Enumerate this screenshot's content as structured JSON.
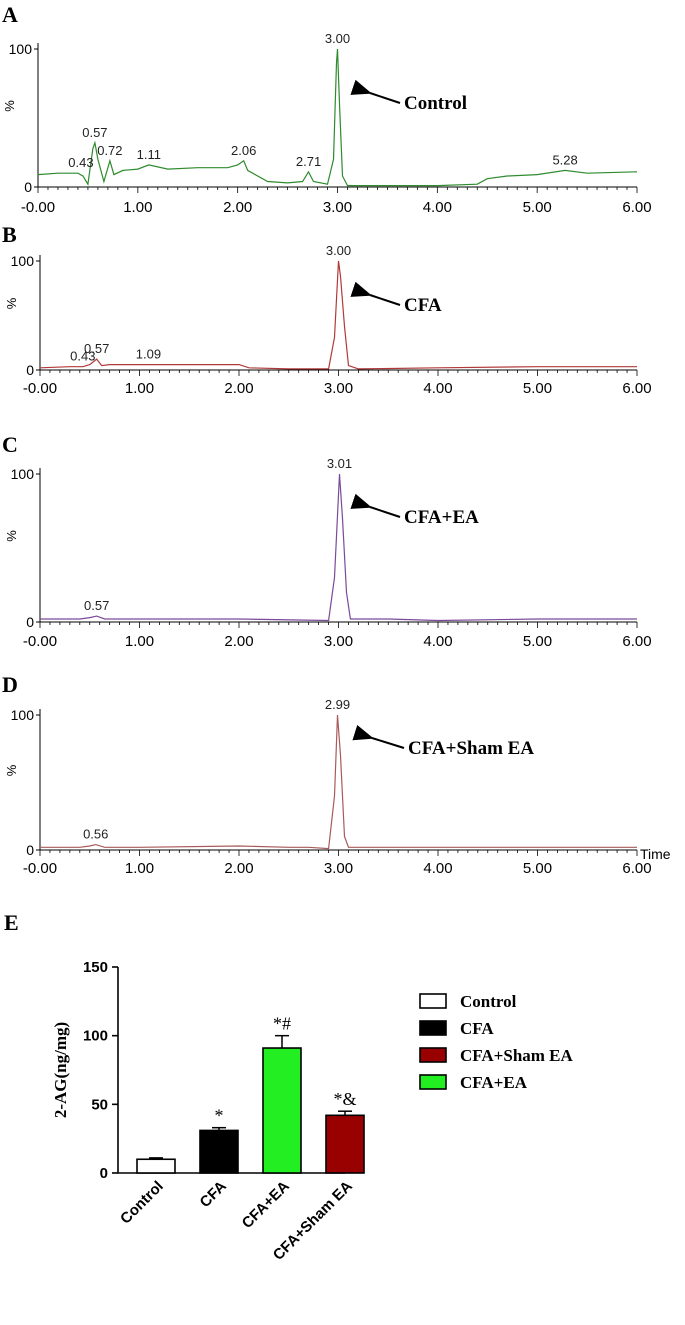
{
  "chart_data": [
    {
      "panel": "A",
      "type": "line",
      "ylabel": "%",
      "ylim": [
        0,
        100
      ],
      "yticks": [
        "0",
        "100"
      ],
      "xlim": [
        0,
        6
      ],
      "xticks": [
        "-0.00",
        "1.00",
        "2.00",
        "3.00",
        "4.00",
        "5.00",
        "6.00"
      ],
      "color": "#2e8b2e",
      "arrow_label": "Control",
      "peaks": [
        {
          "x": 0.43,
          "y": 10,
          "label": "0.43"
        },
        {
          "x": 0.57,
          "y": 32,
          "label": "0.57"
        },
        {
          "x": 0.72,
          "y": 19,
          "label": "0.72"
        },
        {
          "x": 1.11,
          "y": 16,
          "label": "1.11"
        },
        {
          "x": 2.06,
          "y": 19,
          "label": "2.06"
        },
        {
          "x": 2.71,
          "y": 11,
          "label": "2.71"
        },
        {
          "x": 3.0,
          "y": 100,
          "label": "3.00"
        },
        {
          "x": 5.28,
          "y": 12,
          "label": "5.28"
        }
      ],
      "trace": [
        [
          0,
          9
        ],
        [
          0.2,
          10
        ],
        [
          0.4,
          10
        ],
        [
          0.45,
          8
        ],
        [
          0.5,
          2
        ],
        [
          0.55,
          28
        ],
        [
          0.57,
          32
        ],
        [
          0.6,
          20
        ],
        [
          0.66,
          4
        ],
        [
          0.7,
          14
        ],
        [
          0.72,
          19
        ],
        [
          0.76,
          9
        ],
        [
          0.85,
          12
        ],
        [
          1.0,
          13
        ],
        [
          1.11,
          16
        ],
        [
          1.3,
          13
        ],
        [
          1.6,
          14
        ],
        [
          1.9,
          14
        ],
        [
          2.0,
          16
        ],
        [
          2.06,
          19
        ],
        [
          2.1,
          12
        ],
        [
          2.3,
          4
        ],
        [
          2.5,
          3
        ],
        [
          2.65,
          4
        ],
        [
          2.71,
          11
        ],
        [
          2.76,
          4
        ],
        [
          2.9,
          2
        ],
        [
          2.96,
          20
        ],
        [
          2.99,
          90
        ],
        [
          3.0,
          100
        ],
        [
          3.02,
          60
        ],
        [
          3.05,
          8
        ],
        [
          3.1,
          1
        ],
        [
          3.5,
          1
        ],
        [
          4.0,
          1
        ],
        [
          4.4,
          2
        ],
        [
          4.5,
          6
        ],
        [
          4.7,
          8
        ],
        [
          5.0,
          9
        ],
        [
          5.28,
          12
        ],
        [
          5.5,
          10
        ],
        [
          6.0,
          11
        ]
      ]
    },
    {
      "panel": "B",
      "type": "line",
      "ylabel": "%",
      "ylim": [
        0,
        100
      ],
      "yticks": [
        "0",
        "100"
      ],
      "xlim": [
        0,
        6
      ],
      "xticks": [
        "-0.00",
        "1.00",
        "2.00",
        "3.00",
        "4.00",
        "5.00",
        "6.00"
      ],
      "color": "#b03a3a",
      "arrow_label": "CFA",
      "peaks": [
        {
          "x": 0.43,
          "y": 3,
          "label": "0.43"
        },
        {
          "x": 0.57,
          "y": 10,
          "label": "0.57"
        },
        {
          "x": 1.09,
          "y": 5,
          "label": "1.09"
        },
        {
          "x": 3.0,
          "y": 100,
          "label": "3.00"
        }
      ],
      "trace": [
        [
          0,
          2
        ],
        [
          0.3,
          3
        ],
        [
          0.43,
          3
        ],
        [
          0.5,
          5
        ],
        [
          0.57,
          10
        ],
        [
          0.62,
          4
        ],
        [
          0.7,
          5
        ],
        [
          1.0,
          5
        ],
        [
          1.09,
          5
        ],
        [
          1.5,
          5
        ],
        [
          2.0,
          5
        ],
        [
          2.1,
          2
        ],
        [
          2.5,
          1
        ],
        [
          2.9,
          1
        ],
        [
          2.96,
          30
        ],
        [
          3.0,
          100
        ],
        [
          3.02,
          86
        ],
        [
          3.06,
          40
        ],
        [
          3.1,
          4
        ],
        [
          3.2,
          1
        ],
        [
          4.0,
          2
        ],
        [
          5.0,
          3
        ],
        [
          6.0,
          3
        ]
      ]
    },
    {
      "panel": "C",
      "type": "line",
      "ylabel": "%",
      "ylim": [
        0,
        100
      ],
      "yticks": [
        "0",
        "100"
      ],
      "xlim": [
        0,
        6
      ],
      "xticks": [
        "-0.00",
        "1.00",
        "2.00",
        "3.00",
        "4.00",
        "5.00",
        "6.00"
      ],
      "color": "#7a4a9a",
      "arrow_label": "CFA+EA",
      "peaks": [
        {
          "x": 0.57,
          "y": 4,
          "label": "0.57"
        },
        {
          "x": 3.01,
          "y": 100,
          "label": "3.01"
        }
      ],
      "trace": [
        [
          0,
          2
        ],
        [
          0.4,
          2
        ],
        [
          0.5,
          3
        ],
        [
          0.57,
          4
        ],
        [
          0.65,
          2
        ],
        [
          1.0,
          2
        ],
        [
          2.0,
          2
        ],
        [
          2.9,
          1
        ],
        [
          2.96,
          30
        ],
        [
          3.01,
          100
        ],
        [
          3.04,
          70
        ],
        [
          3.08,
          20
        ],
        [
          3.12,
          2
        ],
        [
          3.5,
          2
        ],
        [
          4.0,
          1
        ],
        [
          5.0,
          2
        ],
        [
          6.0,
          2
        ]
      ]
    },
    {
      "panel": "D",
      "type": "line",
      "ylabel": "%",
      "xlabel": "Time",
      "ylim": [
        0,
        100
      ],
      "yticks": [
        "0",
        "100"
      ],
      "xlim": [
        0,
        6
      ],
      "xticks": [
        "-0.00",
        "1.00",
        "2.00",
        "3.00",
        "4.00",
        "5.00",
        "6.00"
      ],
      "color": "#a85a5a",
      "arrow_label": "CFA+Sham EA",
      "peaks": [
        {
          "x": 0.56,
          "y": 4,
          "label": "0.56"
        },
        {
          "x": 2.99,
          "y": 100,
          "label": "2.99"
        }
      ],
      "trace": [
        [
          0,
          2
        ],
        [
          0.4,
          2
        ],
        [
          0.5,
          3
        ],
        [
          0.56,
          4
        ],
        [
          0.65,
          2
        ],
        [
          1.0,
          2
        ],
        [
          2.0,
          3
        ],
        [
          2.5,
          2
        ],
        [
          2.7,
          2
        ],
        [
          2.9,
          1
        ],
        [
          2.96,
          40
        ],
        [
          2.99,
          100
        ],
        [
          3.02,
          70
        ],
        [
          3.06,
          10
        ],
        [
          3.1,
          2
        ],
        [
          4.0,
          2
        ],
        [
          5.0,
          2
        ],
        [
          6.0,
          2
        ]
      ]
    },
    {
      "panel": "E",
      "type": "bar",
      "ylabel": "2-AG(ng/mg)",
      "ylim": [
        0,
        150
      ],
      "yticks": [
        0,
        50,
        100,
        150
      ],
      "categories": [
        "Control",
        "CFA",
        "CFA+EA",
        "CFA+Sham EA"
      ],
      "values": [
        10,
        31,
        91,
        42
      ],
      "errors": [
        1,
        2,
        9,
        3
      ],
      "annotations": [
        "",
        "*",
        "*#",
        "*&"
      ],
      "colors": [
        "#ffffff",
        "#000000",
        "#22ee22",
        "#990000"
      ],
      "legend": {
        "placement": "right",
        "entries": [
          {
            "label": "Control",
            "color": "#ffffff"
          },
          {
            "label": "CFA",
            "color": "#000000"
          },
          {
            "label": "CFA+Sham EA",
            "color": "#990000"
          },
          {
            "label": "CFA+EA",
            "color": "#22ee22"
          }
        ]
      }
    }
  ]
}
